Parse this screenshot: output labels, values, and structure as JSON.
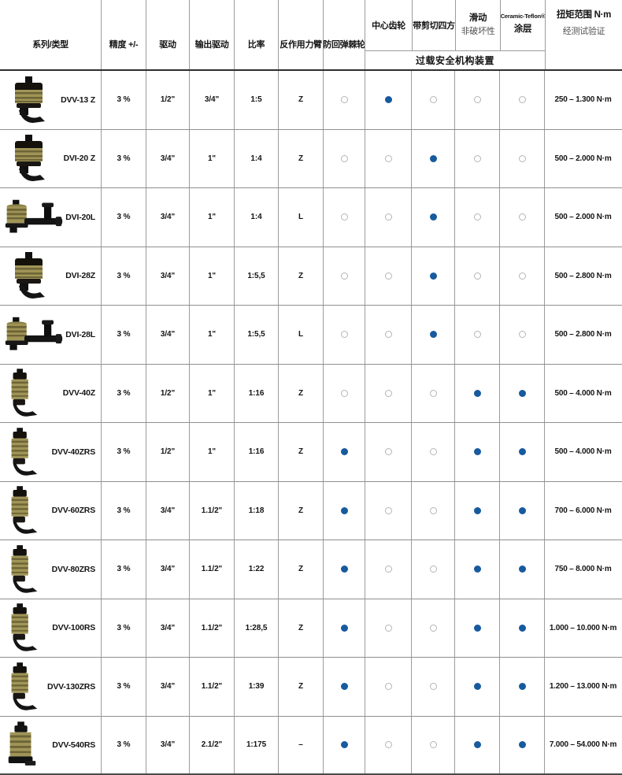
{
  "table": {
    "header": {
      "series_type": "系列/类型",
      "accuracy": "精度 +/-",
      "drive": "驱动",
      "output_drive": "输出驱动",
      "ratio": "比率",
      "reaction_arm": "反作用力臂",
      "anti_kickback_ratchet": "防回弹棘轮",
      "center_gear": "中心齿轮",
      "shear_square": "带剪切四方",
      "sliding_line1": "滑动",
      "sliding_line2": "非破坏性",
      "coating_line1": "Ceramic-Teflon®",
      "coating_line2": "涂层",
      "torque_line1": "扭矩范围 N·m",
      "torque_line2": "经测试验证",
      "overload_group": "过载安全机构装置"
    },
    "colors": {
      "dot_filled": "#175a9e",
      "dot_empty_ring": "#b5b5b5",
      "grid_line": "#9c9c9c",
      "header_border": "#2e2e2e"
    },
    "rows": [
      {
        "model": "DVV-13 Z",
        "photo": "z",
        "accuracy": "3 %",
        "drive": "1/2\"",
        "output_drive": "3/4\"",
        "ratio": "1:5",
        "reaction_arm": "Z",
        "features": {
          "anti_kickback_ratchet": false,
          "center_gear": true,
          "shear_square": false,
          "sliding_nondestructive": false,
          "ceramic_teflon_coating": false
        },
        "torque_range": "250 – 1.300 N·m"
      },
      {
        "model": "DVI-20 Z",
        "photo": "z",
        "accuracy": "3 %",
        "drive": "3/4\"",
        "output_drive": "1\"",
        "ratio": "1:4",
        "reaction_arm": "Z",
        "features": {
          "anti_kickback_ratchet": false,
          "center_gear": false,
          "shear_square": true,
          "sliding_nondestructive": false,
          "ceramic_teflon_coating": false
        },
        "torque_range": "500 – 2.000 N·m"
      },
      {
        "model": "DVI-20L",
        "photo": "l",
        "accuracy": "3 %",
        "drive": "3/4\"",
        "output_drive": "1\"",
        "ratio": "1:4",
        "reaction_arm": "L",
        "features": {
          "anti_kickback_ratchet": false,
          "center_gear": false,
          "shear_square": true,
          "sliding_nondestructive": false,
          "ceramic_teflon_coating": false
        },
        "torque_range": "500 – 2.000 N·m"
      },
      {
        "model": "DVI-28Z",
        "photo": "z",
        "accuracy": "3 %",
        "drive": "3/4\"",
        "output_drive": "1\"",
        "ratio": "1:5,5",
        "reaction_arm": "Z",
        "features": {
          "anti_kickback_ratchet": false,
          "center_gear": false,
          "shear_square": true,
          "sliding_nondestructive": false,
          "ceramic_teflon_coating": false
        },
        "torque_range": "500 – 2.800 N·m"
      },
      {
        "model": "DVI-28L",
        "photo": "l",
        "accuracy": "3 %",
        "drive": "3/4\"",
        "output_drive": "1\"",
        "ratio": "1:5,5",
        "reaction_arm": "L",
        "features": {
          "anti_kickback_ratchet": false,
          "center_gear": false,
          "shear_square": true,
          "sliding_nondestructive": false,
          "ceramic_teflon_coating": false
        },
        "torque_range": "500 – 2.800 N·m"
      },
      {
        "model": "DVV-40Z",
        "photo": "v",
        "accuracy": "3 %",
        "drive": "1/2\"",
        "output_drive": "1\"",
        "ratio": "1:16",
        "reaction_arm": "Z",
        "features": {
          "anti_kickback_ratchet": false,
          "center_gear": false,
          "shear_square": false,
          "sliding_nondestructive": true,
          "ceramic_teflon_coating": true
        },
        "torque_range": "500 – 4.000 N·m"
      },
      {
        "model": "DVV-40ZRS",
        "photo": "v",
        "accuracy": "3 %",
        "drive": "1/2\"",
        "output_drive": "1\"",
        "ratio": "1:16",
        "reaction_arm": "Z",
        "features": {
          "anti_kickback_ratchet": true,
          "center_gear": false,
          "shear_square": false,
          "sliding_nondestructive": true,
          "ceramic_teflon_coating": true
        },
        "torque_range": "500 – 4.000 N·m"
      },
      {
        "model": "DVV-60ZRS",
        "photo": "v",
        "accuracy": "3 %",
        "drive": "3/4\"",
        "output_drive": "1.1/2\"",
        "ratio": "1:18",
        "reaction_arm": "Z",
        "features": {
          "anti_kickback_ratchet": true,
          "center_gear": false,
          "shear_square": false,
          "sliding_nondestructive": true,
          "ceramic_teflon_coating": true
        },
        "torque_range": "700 – 6.000 N·m"
      },
      {
        "model": "DVV-80ZRS",
        "photo": "v",
        "accuracy": "3 %",
        "drive": "3/4\"",
        "output_drive": "1.1/2\"",
        "ratio": "1:22",
        "reaction_arm": "Z",
        "features": {
          "anti_kickback_ratchet": true,
          "center_gear": false,
          "shear_square": false,
          "sliding_nondestructive": true,
          "ceramic_teflon_coating": true
        },
        "torque_range": "750 – 8.000 N·m"
      },
      {
        "model": "DVV-100RS",
        "photo": "v",
        "accuracy": "3 %",
        "drive": "3/4\"",
        "output_drive": "1.1/2\"",
        "ratio": "1:28,5",
        "reaction_arm": "Z",
        "features": {
          "anti_kickback_ratchet": true,
          "center_gear": false,
          "shear_square": false,
          "sliding_nondestructive": true,
          "ceramic_teflon_coating": true
        },
        "torque_range": "1.000 – 10.000 N·m"
      },
      {
        "model": "DVV-130ZRS",
        "photo": "v",
        "accuracy": "3 %",
        "drive": "3/4\"",
        "output_drive": "1.1/2\"",
        "ratio": "1:39",
        "reaction_arm": "Z",
        "features": {
          "anti_kickback_ratchet": true,
          "center_gear": false,
          "shear_square": false,
          "sliding_nondestructive": true,
          "ceramic_teflon_coating": true
        },
        "torque_range": "1.200 – 13.000 N·m"
      },
      {
        "model": "DVV-540RS",
        "photo": "s",
        "accuracy": "3 %",
        "drive": "3/4\"",
        "output_drive": "2.1/2\"",
        "ratio": "1:175",
        "reaction_arm": "–",
        "features": {
          "anti_kickback_ratchet": true,
          "center_gear": false,
          "shear_square": false,
          "sliding_nondestructive": true,
          "ceramic_teflon_coating": true
        },
        "torque_range": "7.000 – 54.000 N·m"
      }
    ]
  }
}
